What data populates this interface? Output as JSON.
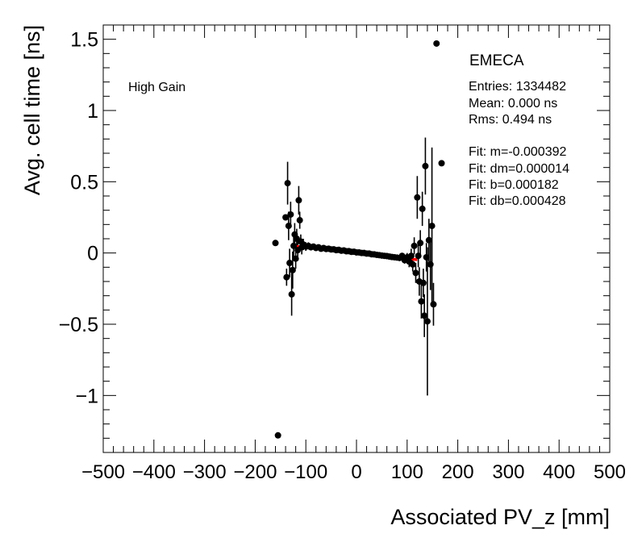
{
  "chart_data": {
    "type": "scatter",
    "title": "",
    "xlabel": "Associated PV_z [mm]",
    "ylabel": "Avg. cell time [ns]",
    "xlim": [
      -500,
      500
    ],
    "ylim": [
      -1.4,
      1.6
    ],
    "x_ticks": [
      {
        "value": -500,
        "label": "−500"
      },
      {
        "value": -400,
        "label": "−400"
      },
      {
        "value": -300,
        "label": "−300"
      },
      {
        "value": -200,
        "label": "−200"
      },
      {
        "value": -100,
        "label": "−100"
      },
      {
        "value": 0,
        "label": "0"
      },
      {
        "value": 100,
        "label": "100"
      },
      {
        "value": 200,
        "label": "200"
      },
      {
        "value": 300,
        "label": "300"
      },
      {
        "value": 400,
        "label": "400"
      },
      {
        "value": 500,
        "label": "500"
      }
    ],
    "y_ticks": [
      {
        "value": -1,
        "label": "−1"
      },
      {
        "value": -0.5,
        "label": "−0.5"
      },
      {
        "value": 0,
        "label": "0"
      },
      {
        "value": 0.5,
        "label": "0.5"
      },
      {
        "value": 1,
        "label": "1"
      },
      {
        "value": 1.5,
        "label": "1.5"
      }
    ],
    "series": [
      {
        "name": "Avg. cell time",
        "color": "#000000",
        "points": [
          {
            "x": -160,
            "y": 0.07,
            "err": 0.0
          },
          {
            "x": -155,
            "y": -1.28,
            "err": 0.0
          },
          {
            "x": -140,
            "y": 0.25,
            "err": 0.0
          },
          {
            "x": -138,
            "y": -0.17,
            "err": 0.06
          },
          {
            "x": -136,
            "y": 0.49,
            "err": 0.15
          },
          {
            "x": -134,
            "y": 0.19,
            "err": 0.1
          },
          {
            "x": -132,
            "y": -0.07,
            "err": 0.1
          },
          {
            "x": -130,
            "y": 0.27,
            "err": 0.09
          },
          {
            "x": -128,
            "y": -0.29,
            "err": 0.15
          },
          {
            "x": -126,
            "y": -0.12,
            "err": 0.13
          },
          {
            "x": -124,
            "y": 0.05,
            "err": 0.09
          },
          {
            "x": -122,
            "y": 0.13,
            "err": 0.08
          },
          {
            "x": -120,
            "y": -0.04,
            "err": 0.07
          },
          {
            "x": -118,
            "y": 0.1,
            "err": 0.07
          },
          {
            "x": -116,
            "y": 0.02,
            "err": 0.06
          },
          {
            "x": -114,
            "y": 0.37,
            "err": 0.1
          },
          {
            "x": -112,
            "y": 0.23,
            "err": 0.06
          },
          {
            "x": -110,
            "y": 0.08,
            "err": 0.05
          },
          {
            "x": -108,
            "y": 0.04,
            "err": 0.05
          },
          {
            "x": -105,
            "y": 0.06,
            "err": 0.04
          },
          {
            "x": -100,
            "y": 0.045,
            "err": 0.03
          },
          {
            "x": -95,
            "y": 0.05,
            "err": 0.025
          },
          {
            "x": -90,
            "y": 0.04,
            "err": 0.02
          },
          {
            "x": -85,
            "y": 0.045,
            "err": 0.02
          },
          {
            "x": -80,
            "y": 0.035,
            "err": 0.015
          },
          {
            "x": -75,
            "y": 0.04,
            "err": 0.015
          },
          {
            "x": -70,
            "y": 0.03,
            "err": 0.012
          },
          {
            "x": -65,
            "y": 0.035,
            "err": 0.01
          },
          {
            "x": -60,
            "y": 0.028,
            "err": 0.01
          },
          {
            "x": -55,
            "y": 0.03,
            "err": 0.01
          },
          {
            "x": -50,
            "y": 0.025,
            "err": 0.01
          },
          {
            "x": -45,
            "y": 0.026,
            "err": 0.01
          },
          {
            "x": -40,
            "y": 0.02,
            "err": 0.01
          },
          {
            "x": -35,
            "y": 0.022,
            "err": 0.01
          },
          {
            "x": -30,
            "y": 0.016,
            "err": 0.01
          },
          {
            "x": -25,
            "y": 0.018,
            "err": 0.01
          },
          {
            "x": -20,
            "y": 0.012,
            "err": 0.01
          },
          {
            "x": -15,
            "y": 0.013,
            "err": 0.01
          },
          {
            "x": -10,
            "y": 0.008,
            "err": 0.01
          },
          {
            "x": -5,
            "y": 0.009,
            "err": 0.01
          },
          {
            "x": 0,
            "y": 0.004,
            "err": 0.01
          },
          {
            "x": 5,
            "y": 0.004,
            "err": 0.01
          },
          {
            "x": 10,
            "y": 0.0,
            "err": 0.01
          },
          {
            "x": 15,
            "y": 0.0,
            "err": 0.01
          },
          {
            "x": 20,
            "y": -0.004,
            "err": 0.01
          },
          {
            "x": 25,
            "y": -0.004,
            "err": 0.01
          },
          {
            "x": 30,
            "y": -0.009,
            "err": 0.01
          },
          {
            "x": 35,
            "y": -0.01,
            "err": 0.01
          },
          {
            "x": 40,
            "y": -0.013,
            "err": 0.01
          },
          {
            "x": 45,
            "y": -0.015,
            "err": 0.01
          },
          {
            "x": 50,
            "y": -0.018,
            "err": 0.01
          },
          {
            "x": 55,
            "y": -0.02,
            "err": 0.01
          },
          {
            "x": 60,
            "y": -0.022,
            "err": 0.01
          },
          {
            "x": 65,
            "y": -0.025,
            "err": 0.012
          },
          {
            "x": 70,
            "y": -0.028,
            "err": 0.012
          },
          {
            "x": 75,
            "y": -0.03,
            "err": 0.015
          },
          {
            "x": 80,
            "y": -0.032,
            "err": 0.015
          },
          {
            "x": 85,
            "y": -0.035,
            "err": 0.02
          },
          {
            "x": 90,
            "y": -0.02,
            "err": 0.02
          },
          {
            "x": 95,
            "y": -0.05,
            "err": 0.025
          },
          {
            "x": 100,
            "y": -0.03,
            "err": 0.03
          },
          {
            "x": 104,
            "y": -0.06,
            "err": 0.04
          },
          {
            "x": 108,
            "y": -0.02,
            "err": 0.05
          },
          {
            "x": 111,
            "y": -0.08,
            "err": 0.05
          },
          {
            "x": 114,
            "y": 0.05,
            "err": 0.06
          },
          {
            "x": 117,
            "y": -0.14,
            "err": 0.07
          },
          {
            "x": 120,
            "y": 0.39,
            "err": 0.15
          },
          {
            "x": 122,
            "y": -0.02,
            "err": 0.08
          },
          {
            "x": 124,
            "y": -0.2,
            "err": 0.1
          },
          {
            "x": 126,
            "y": 0.07,
            "err": 0.09
          },
          {
            "x": 128,
            "y": -0.34,
            "err": 0.12
          },
          {
            "x": 130,
            "y": 0.31,
            "err": 0.12
          },
          {
            "x": 132,
            "y": -0.21,
            "err": 0.1
          },
          {
            "x": 134,
            "y": -0.44,
            "err": 0.15
          },
          {
            "x": 136,
            "y": 0.61,
            "err": 0.2
          },
          {
            "x": 138,
            "y": -0.03,
            "err": 0.1
          },
          {
            "x": 140,
            "y": -0.48,
            "err": 0.52
          },
          {
            "x": 143,
            "y": 0.09,
            "err": 0.15
          },
          {
            "x": 146,
            "y": -0.08,
            "err": 0.18
          },
          {
            "x": 149,
            "y": 0.19,
            "err": 0.55
          },
          {
            "x": 152,
            "y": -0.36,
            "err": 0.15
          },
          {
            "x": 158,
            "y": 1.47,
            "err": 0.0
          },
          {
            "x": 168,
            "y": 0.63,
            "err": 0.0
          }
        ]
      }
    ],
    "fit": {
      "name": "linear fit",
      "color": "#ff0000",
      "x": [
        -120,
        120
      ],
      "y": [
        0.047,
        -0.047
      ]
    },
    "annotations": {
      "label": "High Gain",
      "legend_title": "EMECA",
      "stats": [
        "Entries: 1334482",
        "Mean: 0.000 ns",
        "Rms: 0.494 ns"
      ],
      "fit_params": [
        "Fit: m=-0.000392",
        "Fit: dm=0.000014",
        "Fit: b=0.000182",
        "Fit: db=0.000428"
      ]
    },
    "grid": false
  }
}
